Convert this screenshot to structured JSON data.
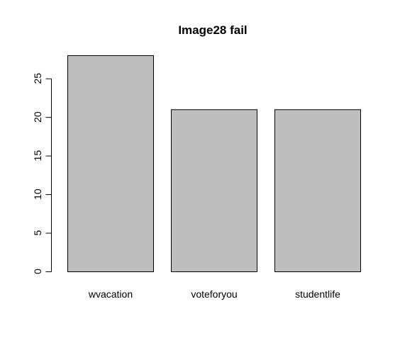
{
  "chart_data": {
    "type": "bar",
    "title": "Image28 fail",
    "xlabel": "",
    "ylabel": "",
    "categories": [
      "wvacation",
      "voteforyou",
      "studentlife"
    ],
    "values": [
      28,
      21,
      21
    ],
    "ylim": [
      0,
      28
    ],
    "yticks": [
      "0",
      "5",
      "10",
      "15",
      "20",
      "25"
    ],
    "grid": false,
    "legend": "none",
    "bar_fill": "#bebebe",
    "bar_stroke": "#000000"
  }
}
